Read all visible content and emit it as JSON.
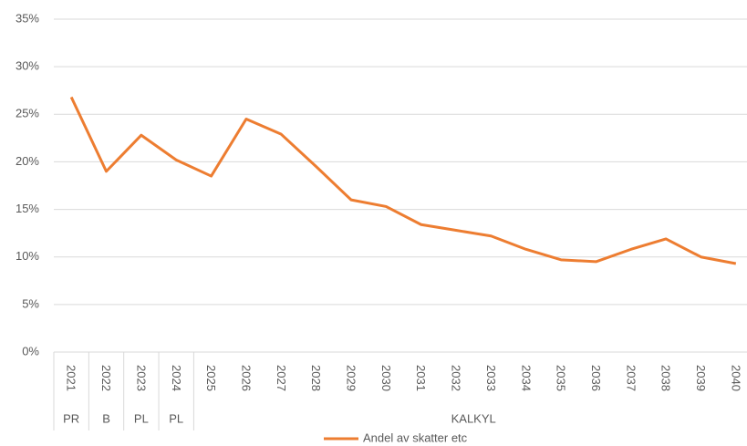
{
  "chart_data": {
    "type": "line",
    "categories": [
      "2021",
      "2022",
      "2023",
      "2024",
      "2025",
      "2026",
      "2027",
      "2028",
      "2029",
      "2030",
      "2031",
      "2032",
      "2033",
      "2034",
      "2035",
      "2036",
      "2037",
      "2038",
      "2039",
      "2040"
    ],
    "groups": [
      {
        "label": "PR",
        "span": 1
      },
      {
        "label": "B",
        "span": 1
      },
      {
        "label": "PL",
        "span": 1
      },
      {
        "label": "PL",
        "span": 1
      },
      {
        "label": "KALKYL",
        "span": 16
      }
    ],
    "series": [
      {
        "name": "Andel av skatter etc",
        "color": "#ed7d31",
        "values": [
          26.8,
          19.0,
          22.8,
          20.2,
          18.5,
          24.5,
          22.9,
          19.5,
          16.0,
          15.3,
          13.4,
          12.8,
          12.2,
          10.8,
          9.7,
          9.5,
          10.8,
          11.9,
          10.0,
          9.3
        ]
      }
    ],
    "ylim": [
      0,
      35
    ],
    "yticks": [
      {
        "value": 0,
        "label": "0%"
      },
      {
        "value": 5,
        "label": "5%"
      },
      {
        "value": 10,
        "label": "10%"
      },
      {
        "value": 15,
        "label": "15%"
      },
      {
        "value": 20,
        "label": "20%"
      },
      {
        "value": 25,
        "label": "25%"
      },
      {
        "value": 30,
        "label": "30%"
      },
      {
        "value": 35,
        "label": "35%"
      }
    ],
    "grid": true,
    "legend": "bottom"
  }
}
